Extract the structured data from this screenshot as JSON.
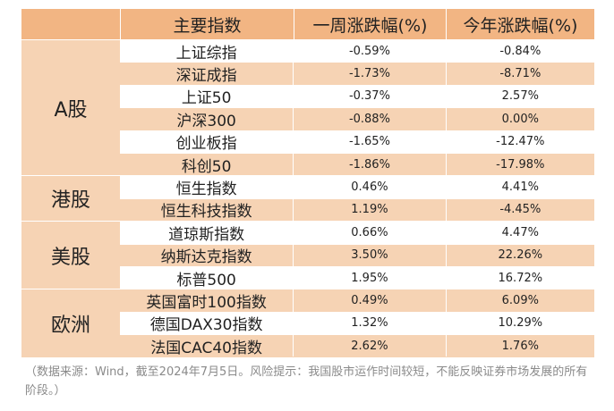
{
  "header": {
    "index": "主要指数",
    "week": "一周涨跌幅(%)",
    "ytd": "今年涨跌幅(%)"
  },
  "regions": [
    {
      "label": "A股",
      "rows": [
        {
          "name": "上证综指",
          "week": "-0.59%",
          "ytd": "-0.84%"
        },
        {
          "name": "深证成指",
          "week": "-1.73%",
          "ytd": "-8.71%"
        },
        {
          "name": "上证50",
          "week": "-0.37%",
          "ytd": "2.57%"
        },
        {
          "name": "沪深300",
          "week": "-0.88%",
          "ytd": "0.00%"
        },
        {
          "name": "创业板指",
          "week": "-1.65%",
          "ytd": "-12.47%"
        },
        {
          "name": "科创50",
          "week": "-1.86%",
          "ytd": "-17.98%"
        }
      ]
    },
    {
      "label": "港股",
      "rows": [
        {
          "name": "恒生指数",
          "week": "0.46%",
          "ytd": "4.41%"
        },
        {
          "name": "恒生科技指数",
          "week": "1.19%",
          "ytd": "-4.45%"
        }
      ]
    },
    {
      "label": "美股",
      "rows": [
        {
          "name": "道琼斯指数",
          "week": "0.66%",
          "ytd": "4.47%"
        },
        {
          "name": "纳斯达克指数",
          "week": "3.50%",
          "ytd": "22.26%"
        },
        {
          "name": "标普500",
          "week": "1.95%",
          "ytd": "16.72%"
        }
      ]
    },
    {
      "label": "欧洲",
      "rows": [
        {
          "name": "英国富时100指数",
          "week": "0.49%",
          "ytd": "6.09%"
        },
        {
          "name": "德国DAX30指数",
          "week": "1.32%",
          "ytd": "10.29%"
        },
        {
          "name": "法国CAC40指数",
          "week": "2.62%",
          "ytd": "1.76%"
        }
      ]
    }
  ],
  "footnote": "（数据来源：Wind，截至2024年7月5日。风险提示：我国股市运作时间较短，不能反映证券市场发展的所有阶段。）"
}
